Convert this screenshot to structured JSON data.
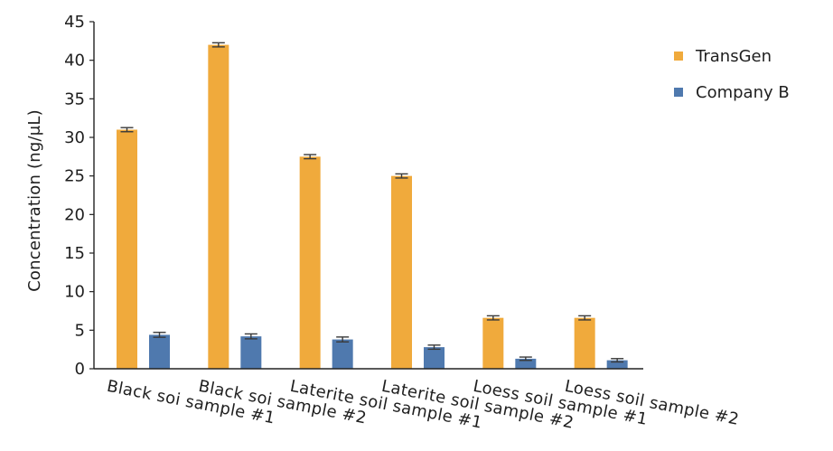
{
  "chart_data": {
    "type": "bar",
    "title": "",
    "xlabel": "",
    "ylabel": "Concentration (ng/μL)",
    "ylim": [
      0,
      45
    ],
    "yticks": [
      0,
      5,
      10,
      15,
      20,
      25,
      30,
      35,
      40,
      45
    ],
    "grid": false,
    "legend_position": "right",
    "categories": [
      "Black soi sample #1",
      "Black soi sample #2",
      "Laterite soil sample #1",
      "Laterite soil sample #2",
      "Loess soil sample #1",
      "Loess soil sample #2"
    ],
    "series": [
      {
        "name": "TransGen",
        "color": "#F0AA3C",
        "values": [
          31.0,
          42.0,
          27.5,
          25.0,
          6.6,
          6.6
        ],
        "errors": [
          0.15,
          0.15,
          0.15,
          0.15,
          0.15,
          0.15
        ]
      },
      {
        "name": "Company B",
        "color": "#4F79AE",
        "values": [
          4.4,
          4.2,
          3.8,
          2.8,
          1.3,
          1.1
        ],
        "errors": [
          0.2,
          0.2,
          0.2,
          0.15,
          0.1,
          0.1
        ]
      }
    ]
  }
}
